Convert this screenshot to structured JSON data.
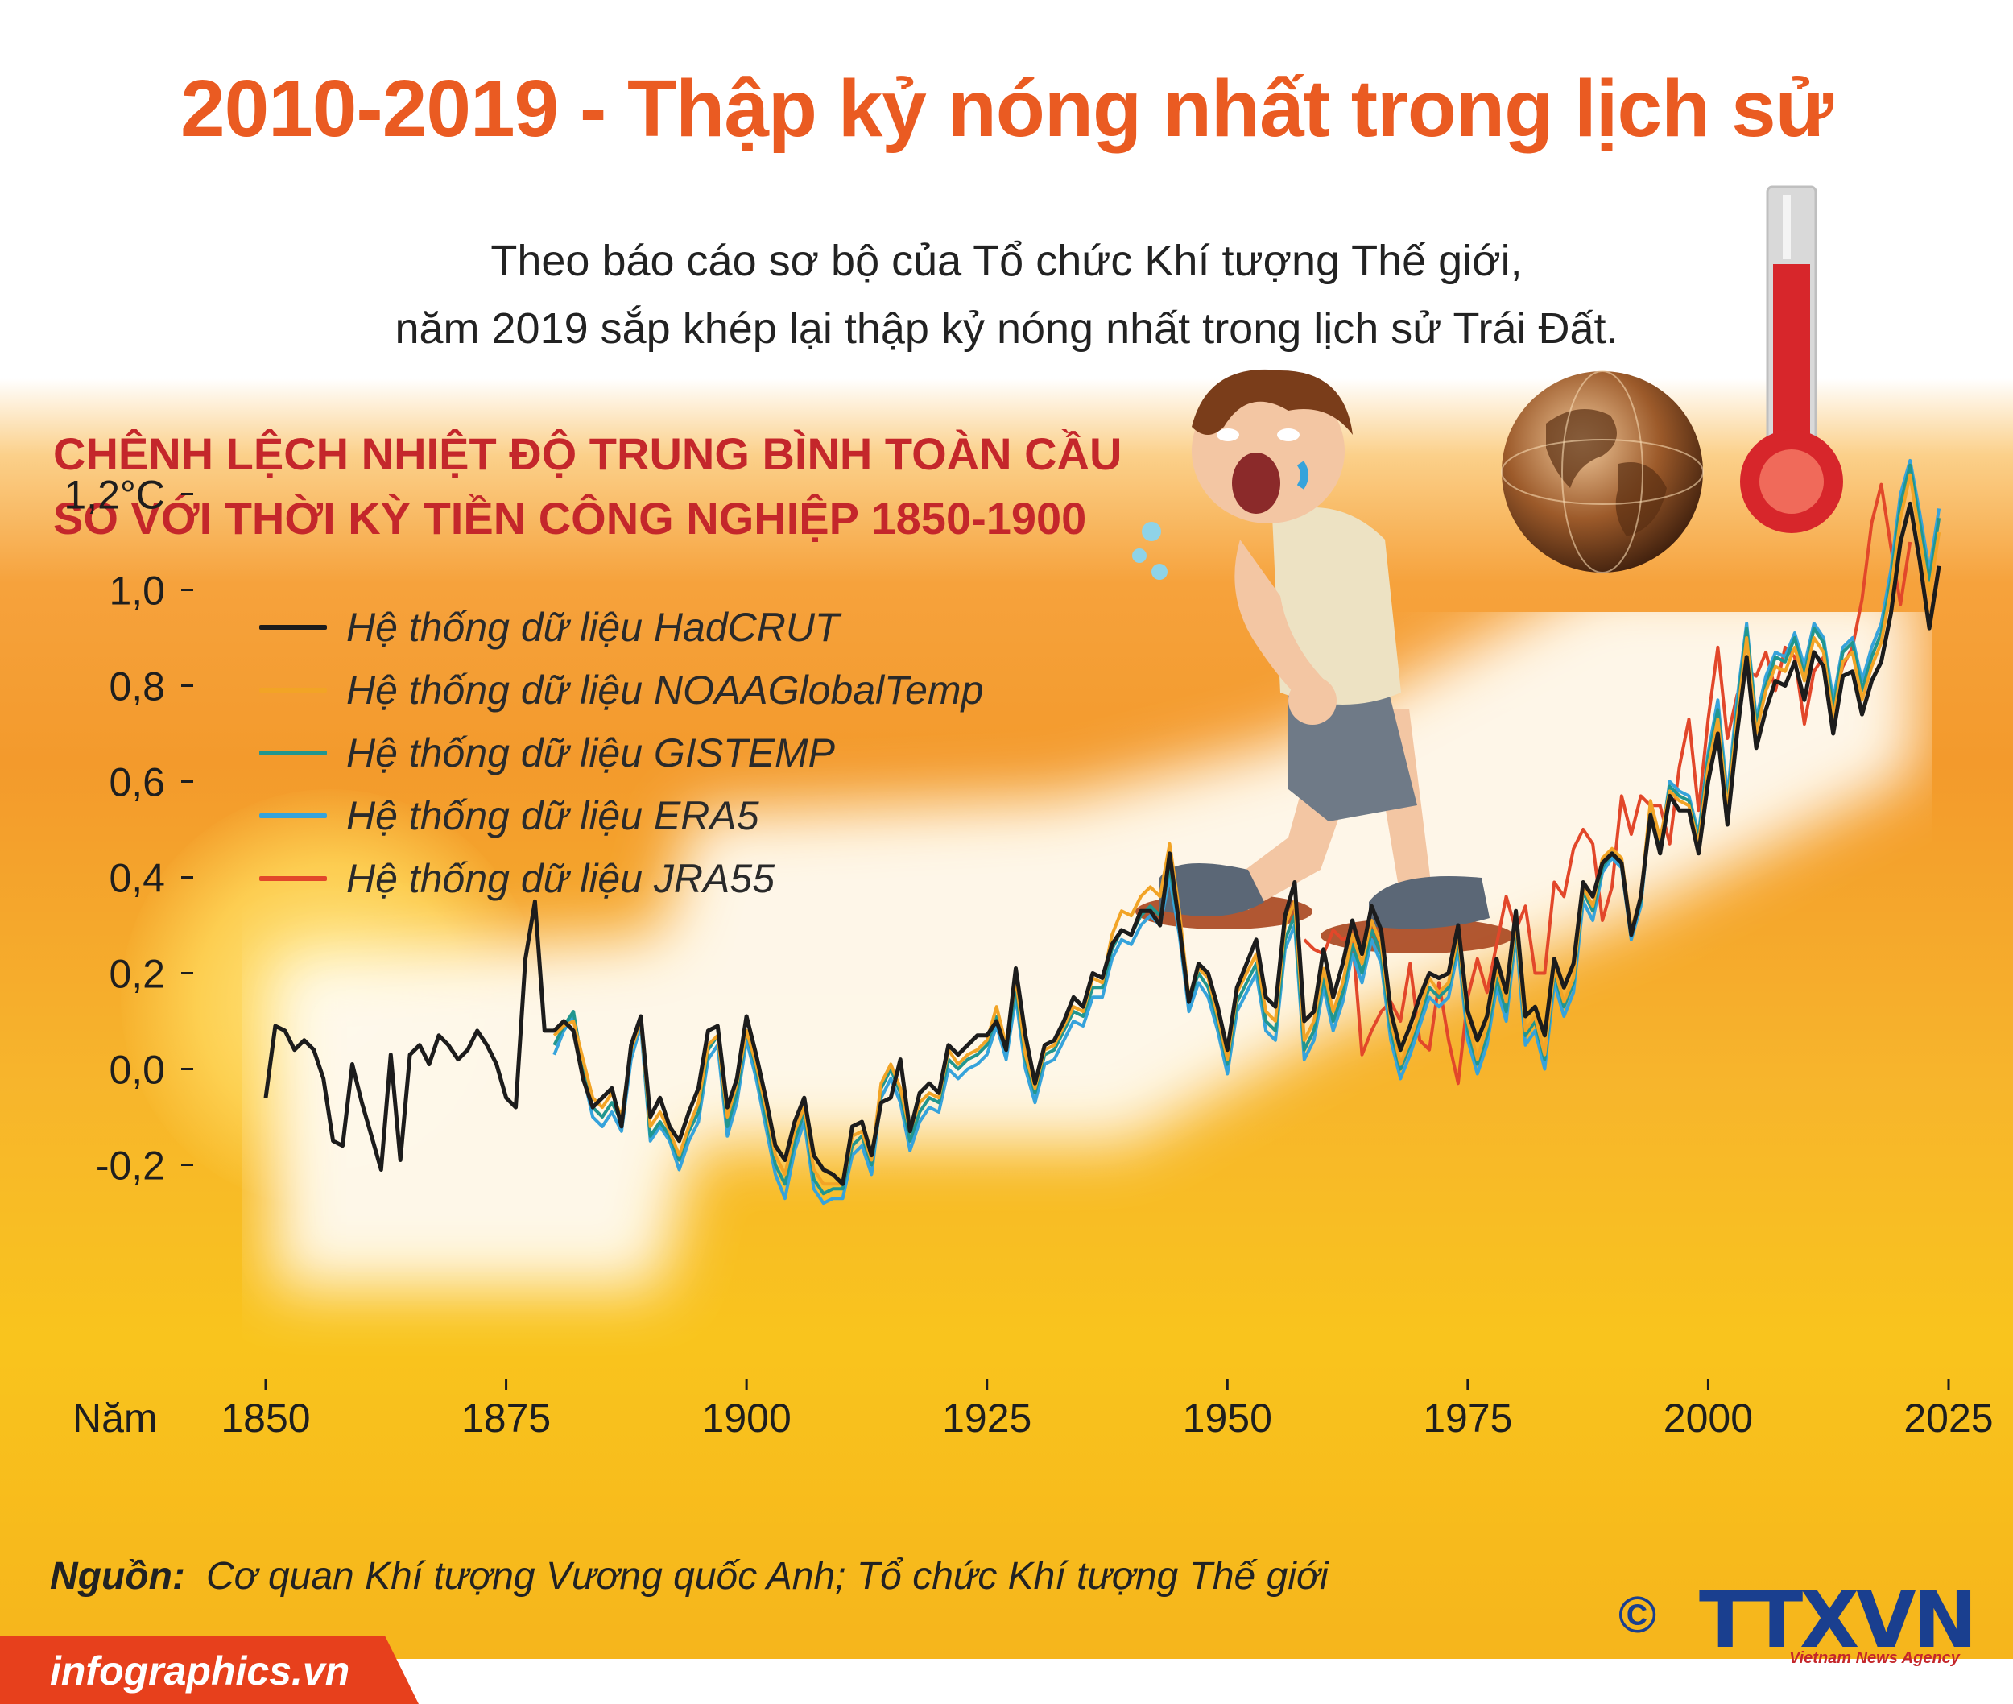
{
  "title": "2010-2019 - Thập kỷ nóng nhất trong lịch sử",
  "intro": {
    "line1": "Theo báo cáo sơ bộ của Tổ chức Khí tượng Thế giới,",
    "line2": "năm 2019 sắp khép lại thập kỷ nóng nhất trong lịch sử Trái Đất."
  },
  "subtitle": {
    "line1": "CHÊNH LỆCH NHIỆT ĐỘ TRUNG BÌNH TOÀN CẦU",
    "line2": "SO VỚI THỜI KỲ TIỀN CÔNG NGHIỆP 1850-1900"
  },
  "source": {
    "label": "Nguồn:",
    "text": "Cơ quan Khí tượng Vương quốc Anh; Tổ chức Khí tượng Thế giới"
  },
  "footer": {
    "site": "infographics.vn"
  },
  "logo": {
    "copyright": "©",
    "name": "TTXVN",
    "tagline": "Vietnam News Agency"
  },
  "colors": {
    "title": "#ea5b22",
    "subtitle": "#c4272b",
    "HadCRUT": "#1c1c1c",
    "NOAAGlobalTemp": "#f2a426",
    "GISTEMP": "#21968f",
    "ERA5": "#36a3db",
    "JRA55": "#e2472a"
  },
  "chart_data": {
    "type": "line",
    "title": "CHÊNH LỆCH NHIỆT ĐỘ TRUNG BÌNH TOÀN CẦU SO VỚI THỜI KỲ TIỀN CÔNG NGHIỆP 1850-1900",
    "xlabel": "Năm",
    "ylabel": "",
    "xlim": [
      1850,
      2025
    ],
    "ylim": [
      -0.3,
      1.3
    ],
    "x_ticks": [
      1850,
      1875,
      1900,
      1925,
      1950,
      1975,
      2000,
      2025
    ],
    "y_ticks": [
      {
        "value": 1.2,
        "label": "1,2°C"
      },
      {
        "value": 1.0,
        "label": "1,0"
      },
      {
        "value": 0.8,
        "label": "0,8"
      },
      {
        "value": 0.6,
        "label": "0,6"
      },
      {
        "value": 0.4,
        "label": "0,4"
      },
      {
        "value": 0.2,
        "label": "0,2"
      },
      {
        "value": 0.0,
        "label": "0,0"
      },
      {
        "value": -0.2,
        "label": "-0,2"
      }
    ],
    "grid": false,
    "legend": "top-left",
    "series": [
      {
        "name": "Hệ thống dữ liệu HadCRUT",
        "key": "HadCRUT",
        "start_year": 1850,
        "values": [
          -0.06,
          0.09,
          0.08,
          0.04,
          0.06,
          0.04,
          -0.02,
          -0.15,
          -0.16,
          0.01,
          -0.07,
          -0.14,
          -0.21,
          0.03,
          -0.19,
          0.03,
          0.05,
          0.01,
          0.07,
          0.05,
          0.02,
          0.04,
          0.08,
          0.05,
          0.01,
          -0.06,
          -0.08,
          0.23,
          0.35,
          0.08,
          0.08,
          0.1,
          0.08,
          -0.02,
          -0.08,
          -0.06,
          -0.04,
          -0.12,
          0.05,
          0.11,
          -0.1,
          -0.06,
          -0.12,
          -0.15,
          -0.09,
          -0.04,
          0.08,
          0.09,
          -0.08,
          -0.02,
          0.11,
          0.03,
          -0.06,
          -0.16,
          -0.19,
          -0.11,
          -0.06,
          -0.18,
          -0.21,
          -0.22,
          -0.24,
          -0.12,
          -0.11,
          -0.18,
          -0.07,
          -0.06,
          0.02,
          -0.13,
          -0.05,
          -0.03,
          -0.05,
          0.05,
          0.03,
          0.05,
          0.07,
          0.07,
          0.1,
          0.04,
          0.21,
          0.07,
          -0.03,
          0.05,
          0.06,
          0.1,
          0.15,
          0.13,
          0.2,
          0.19,
          0.26,
          0.29,
          0.28,
          0.33,
          0.33,
          0.3,
          0.45,
          0.3,
          0.14,
          0.22,
          0.2,
          0.13,
          0.04,
          0.17,
          0.22,
          0.27,
          0.15,
          0.13,
          0.32,
          0.39,
          0.1,
          0.12,
          0.25,
          0.15,
          0.22,
          0.31,
          0.24,
          0.34,
          0.29,
          0.12,
          0.04,
          0.09,
          0.15,
          0.2,
          0.19,
          0.2,
          0.3,
          0.12,
          0.06,
          0.11,
          0.23,
          0.16,
          0.33,
          0.11,
          0.13,
          0.07,
          0.23,
          0.17,
          0.22,
          0.39,
          0.36,
          0.43,
          0.45,
          0.43,
          0.28,
          0.36,
          0.53,
          0.45,
          0.57,
          0.54,
          0.54,
          0.45,
          0.6,
          0.7,
          0.51,
          0.7,
          0.86,
          0.67,
          0.75,
          0.81,
          0.8,
          0.85,
          0.77,
          0.87,
          0.84,
          0.7,
          0.82,
          0.83,
          0.74,
          0.81,
          0.85,
          0.95,
          1.1,
          1.18,
          1.06,
          0.92,
          1.05
        ],
        "color": "#1c1c1c"
      },
      {
        "name": "Hệ thống dữ liệu NOAAGlobalTemp",
        "key": "NOAAGlobalTemp",
        "start_year": 1880,
        "values": [
          0.07,
          0.09,
          0.1,
          0.02,
          -0.06,
          -0.08,
          -0.05,
          -0.1,
          0.04,
          0.1,
          -0.12,
          -0.09,
          -0.13,
          -0.18,
          -0.12,
          -0.07,
          0.05,
          0.07,
          -0.1,
          -0.03,
          0.08,
          0.01,
          -0.08,
          -0.18,
          -0.22,
          -0.13,
          -0.08,
          -0.21,
          -0.24,
          -0.24,
          -0.24,
          -0.14,
          -0.13,
          -0.19,
          -0.03,
          0.01,
          -0.04,
          -0.13,
          -0.07,
          -0.05,
          -0.06,
          0.04,
          0.01,
          0.03,
          0.04,
          0.06,
          0.13,
          0.05,
          0.19,
          0.03,
          -0.04,
          0.04,
          0.05,
          0.09,
          0.13,
          0.12,
          0.19,
          0.18,
          0.28,
          0.33,
          0.32,
          0.36,
          0.38,
          0.36,
          0.47,
          0.33,
          0.15,
          0.21,
          0.19,
          0.11,
          0.02,
          0.16,
          0.2,
          0.24,
          0.12,
          0.1,
          0.3,
          0.35,
          0.06,
          0.1,
          0.21,
          0.12,
          0.18,
          0.28,
          0.22,
          0.31,
          0.26,
          0.1,
          0.01,
          0.06,
          0.12,
          0.19,
          0.16,
          0.18,
          0.28,
          0.1,
          0.02,
          0.09,
          0.21,
          0.14,
          0.31,
          0.08,
          0.11,
          0.03,
          0.21,
          0.14,
          0.19,
          0.38,
          0.34,
          0.44,
          0.46,
          0.44,
          0.29,
          0.36,
          0.56,
          0.48,
          0.58,
          0.56,
          0.55,
          0.47,
          0.63,
          0.73,
          0.54,
          0.73,
          0.9,
          0.7,
          0.79,
          0.84,
          0.83,
          0.88,
          0.81,
          0.9,
          0.87,
          0.73,
          0.85,
          0.87,
          0.77,
          0.84,
          0.89,
          1.0,
          1.15,
          1.24,
          1.11,
          0.99,
          1.12
        ]
      },
      {
        "name": "Hệ thống dữ liệu GISTEMP",
        "key": "GISTEMP",
        "start_year": 1880,
        "values": [
          0.05,
          0.09,
          0.12,
          0.0,
          -0.08,
          -0.1,
          -0.07,
          -0.11,
          0.04,
          0.11,
          -0.14,
          -0.11,
          -0.14,
          -0.19,
          -0.13,
          -0.09,
          0.04,
          0.07,
          -0.12,
          -0.05,
          0.08,
          0.0,
          -0.1,
          -0.2,
          -0.24,
          -0.15,
          -0.09,
          -0.23,
          -0.26,
          -0.25,
          -0.25,
          -0.16,
          -0.14,
          -0.2,
          -0.04,
          0.0,
          -0.05,
          -0.15,
          -0.09,
          -0.06,
          -0.07,
          0.02,
          0.0,
          0.02,
          0.03,
          0.05,
          0.11,
          0.04,
          0.17,
          0.02,
          -0.05,
          0.03,
          0.04,
          0.08,
          0.12,
          0.11,
          0.17,
          0.17,
          0.25,
          0.29,
          0.28,
          0.32,
          0.34,
          0.32,
          0.42,
          0.3,
          0.14,
          0.2,
          0.17,
          0.1,
          0.01,
          0.14,
          0.18,
          0.22,
          0.1,
          0.08,
          0.27,
          0.32,
          0.04,
          0.08,
          0.19,
          0.1,
          0.16,
          0.26,
          0.2,
          0.29,
          0.24,
          0.08,
          0.0,
          0.05,
          0.11,
          0.17,
          0.15,
          0.17,
          0.27,
          0.08,
          0.01,
          0.07,
          0.19,
          0.12,
          0.3,
          0.07,
          0.1,
          0.02,
          0.2,
          0.13,
          0.18,
          0.37,
          0.33,
          0.42,
          0.45,
          0.43,
          0.28,
          0.35,
          0.55,
          0.47,
          0.59,
          0.57,
          0.56,
          0.48,
          0.65,
          0.75,
          0.55,
          0.75,
          0.92,
          0.72,
          0.8,
          0.86,
          0.85,
          0.9,
          0.82,
          0.92,
          0.89,
          0.75,
          0.87,
          0.89,
          0.79,
          0.86,
          0.91,
          1.02,
          1.18,
          1.26,
          1.14,
          1.02,
          1.15
        ]
      },
      {
        "name": "Hệ thống dữ liệu ERA5",
        "key": "ERA5",
        "start_year": 1880,
        "values": [
          0.03,
          0.08,
          0.11,
          -0.01,
          -0.1,
          -0.12,
          -0.09,
          -0.13,
          0.02,
          0.09,
          -0.15,
          -0.12,
          -0.15,
          -0.21,
          -0.15,
          -0.11,
          0.02,
          0.05,
          -0.14,
          -0.07,
          0.06,
          -0.02,
          -0.12,
          -0.22,
          -0.27,
          -0.17,
          -0.11,
          -0.25,
          -0.28,
          -0.27,
          -0.27,
          -0.18,
          -0.16,
          -0.22,
          -0.06,
          -0.02,
          -0.07,
          -0.17,
          -0.11,
          -0.08,
          -0.09,
          0.0,
          -0.02,
          0.0,
          0.01,
          0.03,
          0.09,
          0.02,
          0.15,
          0.0,
          -0.07,
          0.01,
          0.02,
          0.06,
          0.1,
          0.09,
          0.15,
          0.15,
          0.23,
          0.27,
          0.26,
          0.3,
          0.32,
          0.3,
          0.4,
          0.28,
          0.12,
          0.18,
          0.15,
          0.08,
          -0.01,
          0.12,
          0.16,
          0.2,
          0.08,
          0.06,
          0.25,
          0.3,
          0.02,
          0.06,
          0.17,
          0.08,
          0.14,
          0.24,
          0.18,
          0.27,
          0.22,
          0.06,
          -0.02,
          0.03,
          0.09,
          0.15,
          0.13,
          0.15,
          0.25,
          0.06,
          -0.01,
          0.05,
          0.17,
          0.1,
          0.28,
          0.05,
          0.08,
          0.0,
          0.18,
          0.11,
          0.16,
          0.35,
          0.31,
          0.41,
          0.44,
          0.42,
          0.27,
          0.34,
          0.54,
          0.46,
          0.6,
          0.58,
          0.57,
          0.49,
          0.66,
          0.77,
          0.57,
          0.77,
          0.93,
          0.73,
          0.82,
          0.87,
          0.86,
          0.91,
          0.84,
          0.93,
          0.9,
          0.77,
          0.88,
          0.9,
          0.81,
          0.88,
          0.93,
          1.04,
          1.2,
          1.27,
          1.16,
          1.04,
          1.17
        ]
      },
      {
        "name": "Hệ thống dữ liệu JRA55",
        "key": "JRA55",
        "start_year": 1958,
        "values": [
          0.27,
          0.25,
          0.24,
          0.29,
          0.27,
          0.28,
          0.03,
          0.08,
          0.12,
          0.14,
          0.1,
          0.22,
          0.06,
          0.04,
          0.18,
          0.06,
          -0.03,
          0.15,
          0.23,
          0.16,
          0.26,
          0.36,
          0.29,
          0.34,
          0.2,
          0.2,
          0.39,
          0.36,
          0.46,
          0.5,
          0.47,
          0.31,
          0.38,
          0.57,
          0.49,
          0.57,
          0.55,
          0.55,
          0.47,
          0.63,
          0.73,
          0.54,
          0.73,
          0.88,
          0.69,
          0.78,
          0.83,
          0.82,
          0.87,
          0.79,
          0.88,
          0.86,
          0.72,
          0.83,
          0.86,
          0.77,
          0.84,
          0.88,
          0.98,
          1.14,
          1.22,
          1.09,
          0.97,
          1.1
        ]
      }
    ]
  }
}
